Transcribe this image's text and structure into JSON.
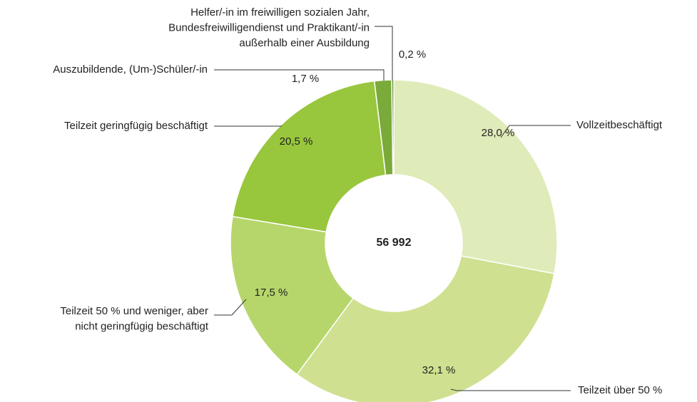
{
  "chart_data": {
    "type": "donut",
    "center_label": "56 992",
    "categories": [
      [
        "Vollzeitbeschäftigt"
      ],
      [
        "Teilzeit über 50 %"
      ],
      [
        "Teilzeit 50 % und weniger, aber",
        "nicht geringfügig beschäftigt"
      ],
      [
        "Teilzeit geringfügig beschäftigt"
      ],
      [
        "Auszubildende, (Um-)Schüler/-in"
      ],
      [
        "Helfer/-in im freiwilligen sozialen Jahr,",
        "Bundesfreiwilligendienst und Praktikant/-in",
        "außerhalb einer Ausbildung"
      ]
    ],
    "values": [
      28.0,
      32.1,
      17.5,
      20.5,
      1.7,
      0.2
    ],
    "value_labels": [
      "28,0 %",
      "32,1 %",
      "17,5 %",
      "20,5 %",
      "1,7 %",
      "0,2 %"
    ],
    "colors": [
      "#dfebb9",
      "#cfe191",
      "#b6d66b",
      "#98c63d",
      "#7aaa3a",
      "#5d8a2c"
    ]
  }
}
